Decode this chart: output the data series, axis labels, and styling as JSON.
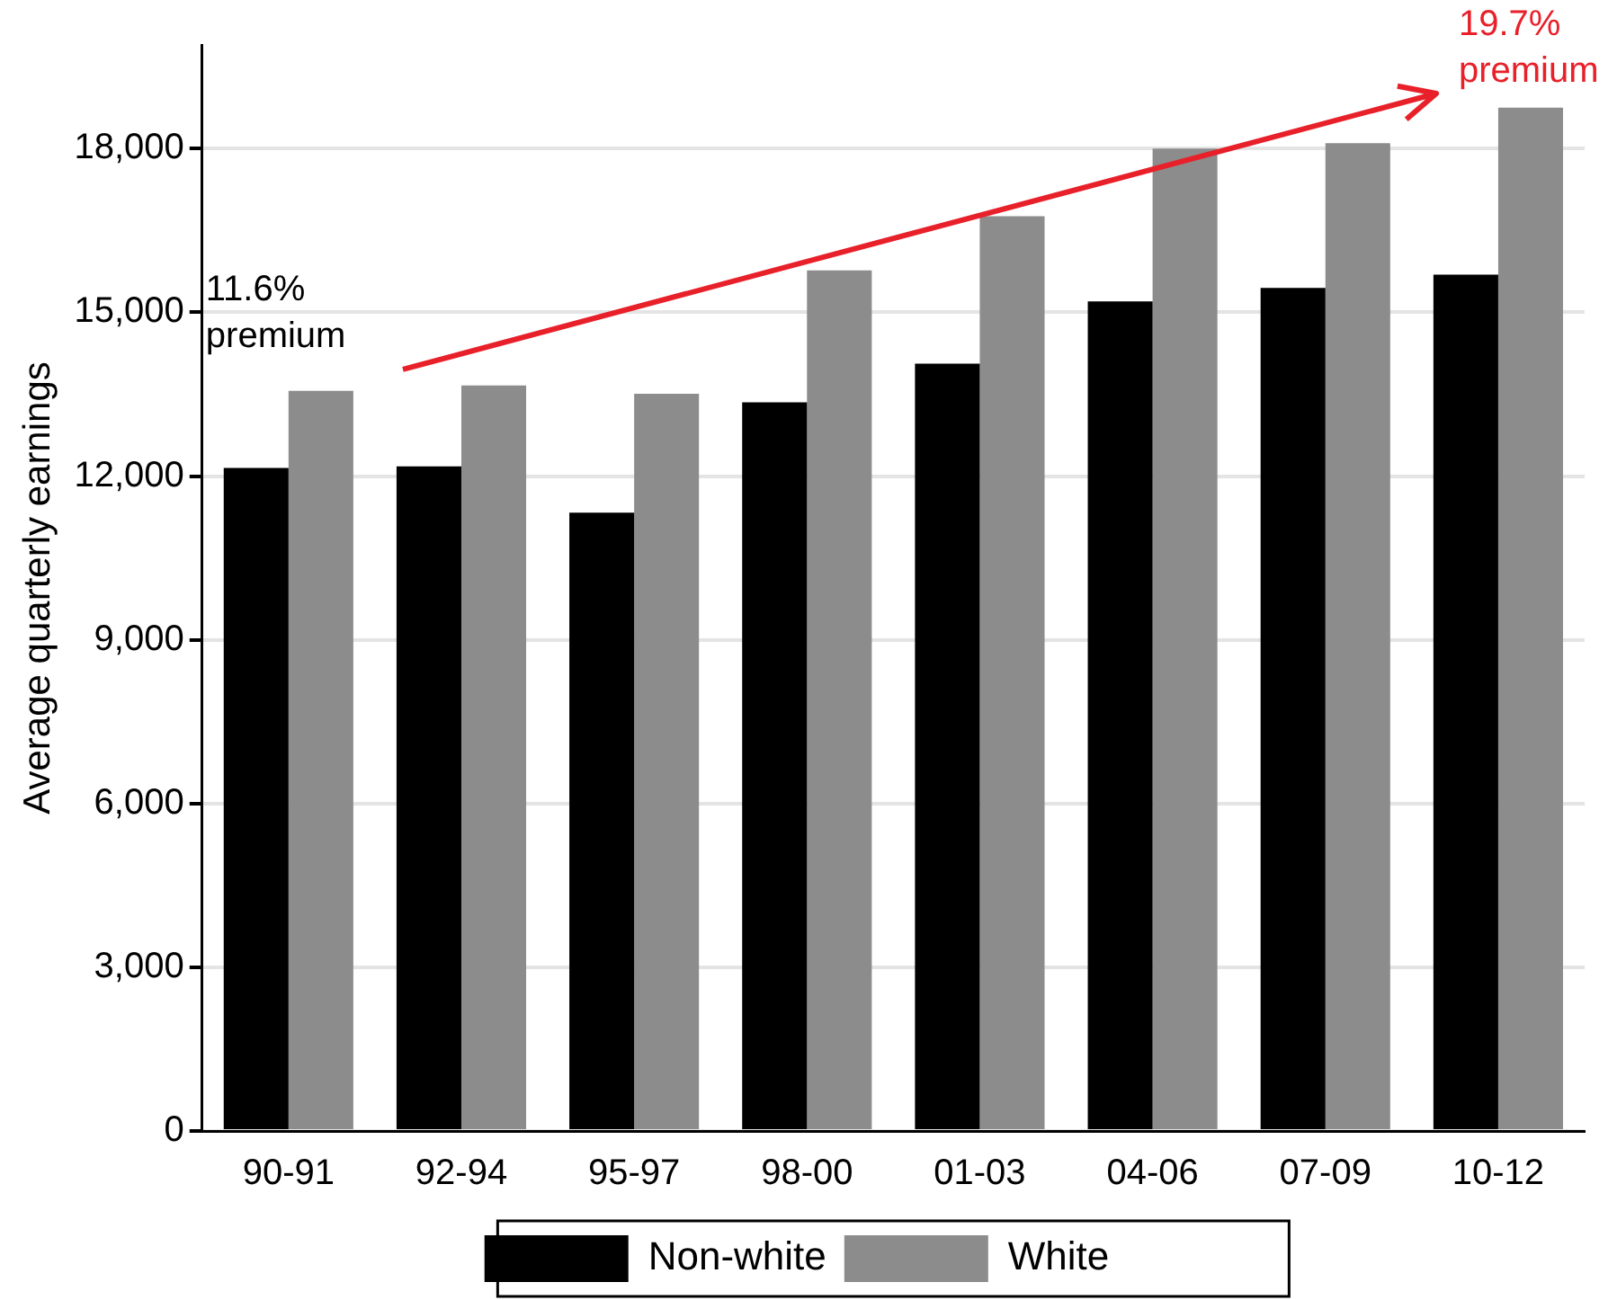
{
  "chart_data": {
    "type": "bar",
    "ylabel": "Average quarterly earnings",
    "categories": [
      "90-91",
      "92-94",
      "95-97",
      "98-00",
      "01-03",
      "04-06",
      "07-09",
      "10-12"
    ],
    "series": [
      {
        "name": "Non-white",
        "color": "#000000",
        "values": [
          12150,
          12180,
          11330,
          13350,
          14060,
          15200,
          15450,
          15690
        ]
      },
      {
        "name": "White",
        "color": "#8c8c8c",
        "values": [
          13560,
          13660,
          13510,
          15770,
          16760,
          18000,
          18100,
          18750
        ]
      }
    ],
    "ylim": [
      0,
      19900
    ],
    "yticks": [
      0,
      {
        "value": 3000,
        "label": "3,000"
      },
      {
        "value": 6000,
        "label": "6,000"
      },
      {
        "value": 9000,
        "label": "9,000"
      },
      {
        "value": 12000,
        "label": "12,000"
      },
      {
        "value": 15000,
        "label": "15,000"
      },
      {
        "value": 18000,
        "label": "18,000"
      }
    ],
    "grid": "y",
    "legend": "bottom",
    "annotations": [
      "11.6%\npremium",
      "19.7%\npremium"
    ]
  }
}
